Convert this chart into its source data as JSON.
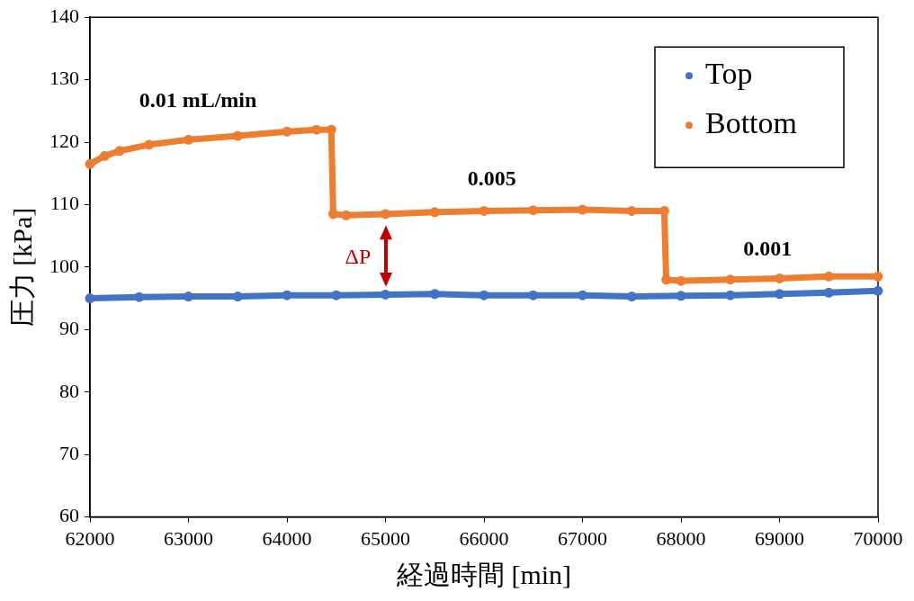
{
  "chart_data": {
    "type": "line",
    "xlabel": "経過時間 [min]",
    "ylabel": "圧力 [kPa]",
    "xlim": [
      62000,
      70000
    ],
    "xticks": [
      62000,
      63000,
      64000,
      65000,
      66000,
      67000,
      68000,
      69000,
      70000
    ],
    "ylim": [
      60,
      140
    ],
    "yticks": [
      60,
      70,
      80,
      90,
      100,
      110,
      120,
      130,
      140
    ],
    "grid": false,
    "legend": "top right",
    "marker": "circle",
    "line_style": "solid",
    "annotations": [
      "0.01 mL/min",
      "0.005",
      "0.001",
      "ΔP"
    ],
    "series": [
      {
        "name": "Top",
        "color": "#4472c4",
        "x": [
          62000,
          62500,
          63000,
          63500,
          64000,
          64500,
          65000,
          65500,
          66000,
          66500,
          67000,
          67500,
          68000,
          68500,
          69000,
          69500,
          70000
        ],
        "values": [
          95,
          95.2,
          95.3,
          95.3,
          95.5,
          95.5,
          95.6,
          95.7,
          95.5,
          95.5,
          95.5,
          95.3,
          95.4,
          95.5,
          95.7,
          95.9,
          96.2
        ]
      },
      {
        "name": "Bottom",
        "color": "#ed7d31",
        "x": [
          62000,
          62150,
          62300,
          62600,
          63000,
          63500,
          64000,
          64300,
          64450,
          64470,
          64600,
          65000,
          65500,
          66000,
          66500,
          67000,
          67500,
          67830,
          67850,
          68000,
          68500,
          69000,
          69500,
          70000
        ],
        "values": [
          116.5,
          117.8,
          118.6,
          119.6,
          120.4,
          121,
          121.7,
          122,
          122,
          108.5,
          108.3,
          108.5,
          108.8,
          109,
          109.1,
          109.2,
          109,
          109,
          98,
          97.8,
          98,
          98.2,
          98.5,
          98.5
        ]
      }
    ]
  }
}
